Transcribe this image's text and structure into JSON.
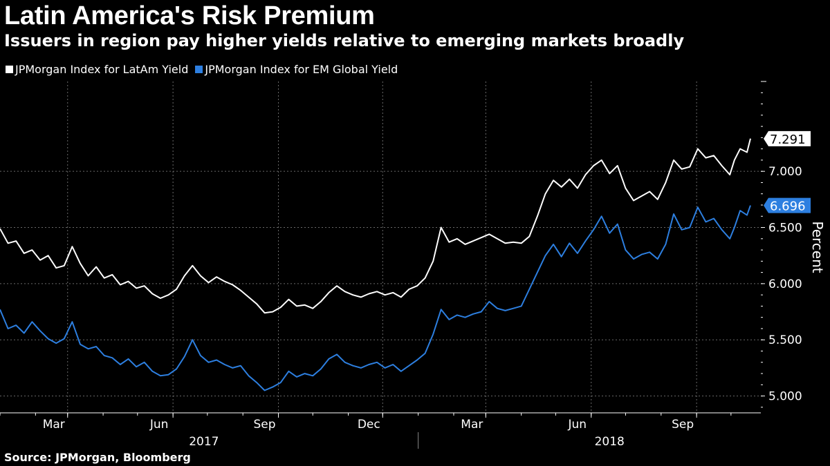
{
  "title": "Latin America's Risk Premium",
  "subtitle": "Issuers in region pay higher yields relative to emerging markets broadly",
  "source": "Source: JPMorgan, Bloomberg",
  "colors": {
    "background": "#000000",
    "latam": "#ffffff",
    "em": "#2d7fe0",
    "grid": "#6b6b6b"
  },
  "chart_data": {
    "type": "line",
    "title": "Latin America's Risk Premium",
    "ylabel": "Percent",
    "xlabel": "",
    "ylim": [
      4.85,
      7.8
    ],
    "yticks": [
      5.0,
      5.5,
      6.0,
      6.5,
      7.0
    ],
    "ytick_labels": [
      "5.000",
      "5.500",
      "6.000",
      "6.500",
      "7.000"
    ],
    "xlim": [
      "2017-01-01",
      "2018-10-18"
    ],
    "xticks": [
      {
        "date": "2017-03-01",
        "label": "Mar"
      },
      {
        "date": "2017-06-01",
        "label": "Jun"
      },
      {
        "date": "2017-09-01",
        "label": "Sep"
      },
      {
        "date": "2017-12-01",
        "label": "Dec"
      },
      {
        "date": "2018-03-01",
        "label": "Mar"
      },
      {
        "date": "2018-06-01",
        "label": "Jun"
      },
      {
        "date": "2018-09-01",
        "label": "Sep"
      }
    ],
    "year_labels": [
      {
        "date": "2017-07-01",
        "label": "2017"
      },
      {
        "date": "2018-06-20",
        "label": "2018"
      }
    ],
    "legend_position": "top-left",
    "grid": true,
    "series": [
      {
        "name": "JPMorgan Index for LatAm Yield",
        "color": "#ffffff",
        "last_value_label": "7.291",
        "points": [
          [
            "2017-01-01",
            6.49
          ],
          [
            "2017-01-08",
            6.36
          ],
          [
            "2017-01-15",
            6.38
          ],
          [
            "2017-01-22",
            6.27
          ],
          [
            "2017-01-29",
            6.3
          ],
          [
            "2017-02-05",
            6.21
          ],
          [
            "2017-02-12",
            6.25
          ],
          [
            "2017-02-19",
            6.14
          ],
          [
            "2017-02-26",
            6.16
          ],
          [
            "2017-03-05",
            6.33
          ],
          [
            "2017-03-12",
            6.18
          ],
          [
            "2017-03-19",
            6.07
          ],
          [
            "2017-03-26",
            6.15
          ],
          [
            "2017-04-02",
            6.05
          ],
          [
            "2017-04-09",
            6.08
          ],
          [
            "2017-04-16",
            5.99
          ],
          [
            "2017-04-23",
            6.02
          ],
          [
            "2017-04-30",
            5.96
          ],
          [
            "2017-05-07",
            5.98
          ],
          [
            "2017-05-14",
            5.91
          ],
          [
            "2017-05-21",
            5.87
          ],
          [
            "2017-05-28",
            5.9
          ],
          [
            "2017-06-04",
            5.95
          ],
          [
            "2017-06-11",
            6.07
          ],
          [
            "2017-06-18",
            6.16
          ],
          [
            "2017-06-25",
            6.07
          ],
          [
            "2017-07-02",
            6.01
          ],
          [
            "2017-07-09",
            6.06
          ],
          [
            "2017-07-16",
            6.02
          ],
          [
            "2017-07-23",
            5.99
          ],
          [
            "2017-07-30",
            5.94
          ],
          [
            "2017-08-06",
            5.88
          ],
          [
            "2017-08-13",
            5.82
          ],
          [
            "2017-08-20",
            5.74
          ],
          [
            "2017-08-27",
            5.75
          ],
          [
            "2017-09-03",
            5.79
          ],
          [
            "2017-09-10",
            5.86
          ],
          [
            "2017-09-17",
            5.8
          ],
          [
            "2017-09-24",
            5.81
          ],
          [
            "2017-10-01",
            5.78
          ],
          [
            "2017-10-08",
            5.84
          ],
          [
            "2017-10-15",
            5.92
          ],
          [
            "2017-10-22",
            5.98
          ],
          [
            "2017-10-29",
            5.93
          ],
          [
            "2017-11-05",
            5.9
          ],
          [
            "2017-11-12",
            5.88
          ],
          [
            "2017-11-19",
            5.91
          ],
          [
            "2017-11-26",
            5.93
          ],
          [
            "2017-12-03",
            5.9
          ],
          [
            "2017-12-10",
            5.92
          ],
          [
            "2017-12-17",
            5.88
          ],
          [
            "2017-12-24",
            5.95
          ],
          [
            "2017-12-31",
            5.98
          ],
          [
            "2018-01-07",
            6.05
          ],
          [
            "2018-01-14",
            6.2
          ],
          [
            "2018-01-21",
            6.5
          ],
          [
            "2018-01-28",
            6.37
          ],
          [
            "2018-02-04",
            6.4
          ],
          [
            "2018-02-11",
            6.35
          ],
          [
            "2018-02-18",
            6.38
          ],
          [
            "2018-02-25",
            6.41
          ],
          [
            "2018-03-04",
            6.44
          ],
          [
            "2018-03-11",
            6.4
          ],
          [
            "2018-03-18",
            6.36
          ],
          [
            "2018-03-25",
            6.37
          ],
          [
            "2018-04-01",
            6.36
          ],
          [
            "2018-04-08",
            6.42
          ],
          [
            "2018-04-15",
            6.6
          ],
          [
            "2018-04-22",
            6.8
          ],
          [
            "2018-04-29",
            6.92
          ],
          [
            "2018-05-06",
            6.86
          ],
          [
            "2018-05-13",
            6.93
          ],
          [
            "2018-05-20",
            6.85
          ],
          [
            "2018-05-27",
            6.97
          ],
          [
            "2018-06-03",
            7.05
          ],
          [
            "2018-06-10",
            7.1
          ],
          [
            "2018-06-17",
            6.98
          ],
          [
            "2018-06-24",
            7.05
          ],
          [
            "2018-07-01",
            6.85
          ],
          [
            "2018-07-08",
            6.74
          ],
          [
            "2018-07-15",
            6.78
          ],
          [
            "2018-07-22",
            6.82
          ],
          [
            "2018-07-29",
            6.75
          ],
          [
            "2018-08-05",
            6.9
          ],
          [
            "2018-08-12",
            7.1
          ],
          [
            "2018-08-19",
            7.02
          ],
          [
            "2018-08-26",
            7.04
          ],
          [
            "2018-09-02",
            7.2
          ],
          [
            "2018-09-09",
            7.12
          ],
          [
            "2018-09-16",
            7.14
          ],
          [
            "2018-09-23",
            7.05
          ],
          [
            "2018-09-30",
            6.97
          ],
          [
            "2018-10-04",
            7.1
          ],
          [
            "2018-10-09",
            7.2
          ],
          [
            "2018-10-15",
            7.17
          ],
          [
            "2018-10-18",
            7.291
          ]
        ]
      },
      {
        "name": "JPMorgan Index for EM Global Yield",
        "color": "#2d7fe0",
        "last_value_label": "6.696",
        "points": [
          [
            "2017-01-01",
            5.77
          ],
          [
            "2017-01-08",
            5.6
          ],
          [
            "2017-01-15",
            5.63
          ],
          [
            "2017-01-22",
            5.56
          ],
          [
            "2017-01-29",
            5.66
          ],
          [
            "2017-02-05",
            5.58
          ],
          [
            "2017-02-12",
            5.51
          ],
          [
            "2017-02-19",
            5.47
          ],
          [
            "2017-02-26",
            5.51
          ],
          [
            "2017-03-05",
            5.66
          ],
          [
            "2017-03-12",
            5.46
          ],
          [
            "2017-03-19",
            5.42
          ],
          [
            "2017-03-26",
            5.44
          ],
          [
            "2017-04-02",
            5.36
          ],
          [
            "2017-04-09",
            5.34
          ],
          [
            "2017-04-16",
            5.28
          ],
          [
            "2017-04-23",
            5.33
          ],
          [
            "2017-04-30",
            5.26
          ],
          [
            "2017-05-07",
            5.3
          ],
          [
            "2017-05-14",
            5.22
          ],
          [
            "2017-05-21",
            5.18
          ],
          [
            "2017-05-28",
            5.19
          ],
          [
            "2017-06-04",
            5.24
          ],
          [
            "2017-06-11",
            5.35
          ],
          [
            "2017-06-18",
            5.5
          ],
          [
            "2017-06-25",
            5.36
          ],
          [
            "2017-07-02",
            5.3
          ],
          [
            "2017-07-09",
            5.32
          ],
          [
            "2017-07-16",
            5.28
          ],
          [
            "2017-07-23",
            5.25
          ],
          [
            "2017-07-30",
            5.27
          ],
          [
            "2017-08-06",
            5.18
          ],
          [
            "2017-08-13",
            5.12
          ],
          [
            "2017-08-20",
            5.05
          ],
          [
            "2017-08-27",
            5.08
          ],
          [
            "2017-09-03",
            5.12
          ],
          [
            "2017-09-10",
            5.22
          ],
          [
            "2017-09-17",
            5.17
          ],
          [
            "2017-09-24",
            5.2
          ],
          [
            "2017-10-01",
            5.18
          ],
          [
            "2017-10-08",
            5.24
          ],
          [
            "2017-10-15",
            5.33
          ],
          [
            "2017-10-22",
            5.37
          ],
          [
            "2017-10-29",
            5.3
          ],
          [
            "2017-11-05",
            5.27
          ],
          [
            "2017-11-12",
            5.25
          ],
          [
            "2017-11-19",
            5.28
          ],
          [
            "2017-11-26",
            5.3
          ],
          [
            "2017-12-03",
            5.25
          ],
          [
            "2017-12-10",
            5.28
          ],
          [
            "2017-12-17",
            5.22
          ],
          [
            "2017-12-24",
            5.27
          ],
          [
            "2017-12-31",
            5.32
          ],
          [
            "2018-01-07",
            5.38
          ],
          [
            "2018-01-14",
            5.55
          ],
          [
            "2018-01-21",
            5.77
          ],
          [
            "2018-01-28",
            5.68
          ],
          [
            "2018-02-04",
            5.72
          ],
          [
            "2018-02-11",
            5.7
          ],
          [
            "2018-02-18",
            5.73
          ],
          [
            "2018-02-25",
            5.75
          ],
          [
            "2018-03-04",
            5.84
          ],
          [
            "2018-03-11",
            5.78
          ],
          [
            "2018-03-18",
            5.76
          ],
          [
            "2018-03-25",
            5.78
          ],
          [
            "2018-04-01",
            5.8
          ],
          [
            "2018-04-08",
            5.95
          ],
          [
            "2018-04-15",
            6.1
          ],
          [
            "2018-04-22",
            6.25
          ],
          [
            "2018-04-29",
            6.35
          ],
          [
            "2018-05-06",
            6.24
          ],
          [
            "2018-05-13",
            6.36
          ],
          [
            "2018-05-20",
            6.27
          ],
          [
            "2018-05-27",
            6.38
          ],
          [
            "2018-06-03",
            6.48
          ],
          [
            "2018-06-10",
            6.6
          ],
          [
            "2018-06-17",
            6.45
          ],
          [
            "2018-06-24",
            6.53
          ],
          [
            "2018-07-01",
            6.3
          ],
          [
            "2018-07-08",
            6.22
          ],
          [
            "2018-07-15",
            6.26
          ],
          [
            "2018-07-22",
            6.28
          ],
          [
            "2018-07-29",
            6.22
          ],
          [
            "2018-08-05",
            6.35
          ],
          [
            "2018-08-12",
            6.62
          ],
          [
            "2018-08-19",
            6.48
          ],
          [
            "2018-08-26",
            6.5
          ],
          [
            "2018-09-02",
            6.68
          ],
          [
            "2018-09-09",
            6.55
          ],
          [
            "2018-09-16",
            6.58
          ],
          [
            "2018-09-23",
            6.48
          ],
          [
            "2018-09-30",
            6.4
          ],
          [
            "2018-10-04",
            6.5
          ],
          [
            "2018-10-09",
            6.65
          ],
          [
            "2018-10-15",
            6.61
          ],
          [
            "2018-10-18",
            6.696
          ]
        ]
      }
    ]
  }
}
